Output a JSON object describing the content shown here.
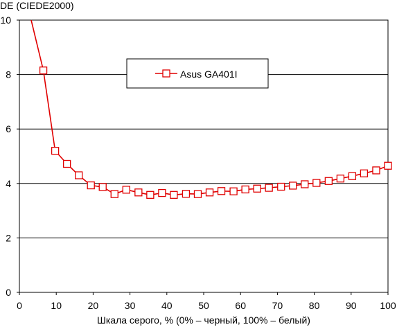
{
  "chart_data": {
    "type": "line",
    "title": "",
    "ylabel": "DE (CIEDE2000)",
    "xlabel": "Шкала серого, % (0% – черный, 100% – белый)",
    "xlim": [
      0,
      100
    ],
    "ylim": [
      0,
      10
    ],
    "x_ticks": [
      0,
      10,
      20,
      30,
      40,
      50,
      60,
      70,
      80,
      90,
      100
    ],
    "y_ticks": [
      0,
      2,
      4,
      6,
      8,
      10
    ],
    "grid": "horizontal",
    "legend_position": "top-center",
    "series": [
      {
        "name": "Asus GA401I",
        "color": "#e00000",
        "marker": "square",
        "x": [
          3.2,
          6.5,
          9.7,
          12.9,
          16.1,
          19.4,
          22.6,
          25.8,
          29.0,
          32.3,
          35.5,
          38.7,
          41.9,
          45.2,
          48.4,
          51.6,
          54.8,
          58.1,
          61.3,
          64.5,
          67.7,
          71.0,
          74.2,
          77.4,
          80.6,
          83.9,
          87.1,
          90.3,
          93.5,
          96.8,
          100
        ],
        "y": [
          10.0,
          8.15,
          5.2,
          4.72,
          4.3,
          3.93,
          3.87,
          3.61,
          3.77,
          3.67,
          3.58,
          3.65,
          3.58,
          3.62,
          3.61,
          3.67,
          3.72,
          3.71,
          3.78,
          3.81,
          3.84,
          3.88,
          3.92,
          3.97,
          4.02,
          4.09,
          4.18,
          4.27,
          4.37,
          4.48,
          4.65
        ],
        "x_start_no_marker": true
      }
    ]
  }
}
